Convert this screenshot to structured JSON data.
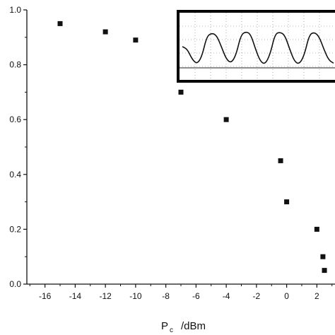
{
  "chart_data": {
    "type": "scatter",
    "xlabel": "P",
    "xlabel_sub": "c",
    "xlabel_unit": "/dBm",
    "ylabel": "",
    "xlim": [
      -17.2,
      3.2
    ],
    "ylim": [
      0.0,
      1.0
    ],
    "xticks": [
      -16,
      -14,
      -12,
      -10,
      -8,
      -6,
      -4,
      -2,
      0,
      2
    ],
    "xtick_labels": [
      "-16",
      "-14",
      "-12",
      "-10",
      "-8",
      "-6",
      "-4",
      "-2",
      "0",
      "2"
    ],
    "yticks": [
      0.0,
      0.2,
      0.4,
      0.6,
      0.8,
      1.0
    ],
    "ytick_labels": [
      "0.0",
      "0.2",
      "0.4",
      "0.6",
      "0.8",
      "1.0"
    ],
    "grid": false,
    "legend": "none",
    "marker": "square",
    "marker_color": "#111111",
    "series": [
      {
        "x": [
          -15,
          -12,
          -10,
          -7,
          -4,
          -0.4,
          0,
          2,
          2.4,
          2.5
        ],
        "y": [
          0.95,
          0.92,
          0.89,
          0.7,
          0.6,
          0.45,
          0.3,
          0.2,
          0.1,
          0.05
        ]
      }
    ],
    "inset": {
      "type": "line",
      "description_shown": "oscilloscope waveform",
      "waveform_y": [
        0.55,
        0.5,
        0.3,
        0.2,
        0.35,
        0.75,
        0.82,
        0.78,
        0.55,
        0.3,
        0.22,
        0.38,
        0.78,
        0.85,
        0.8,
        0.5,
        0.25,
        0.2,
        0.4,
        0.8,
        0.84,
        0.78,
        0.5,
        0.25,
        0.2,
        0.38,
        0.78,
        0.84,
        0.76,
        0.5,
        0.28,
        0.22
      ]
    }
  }
}
